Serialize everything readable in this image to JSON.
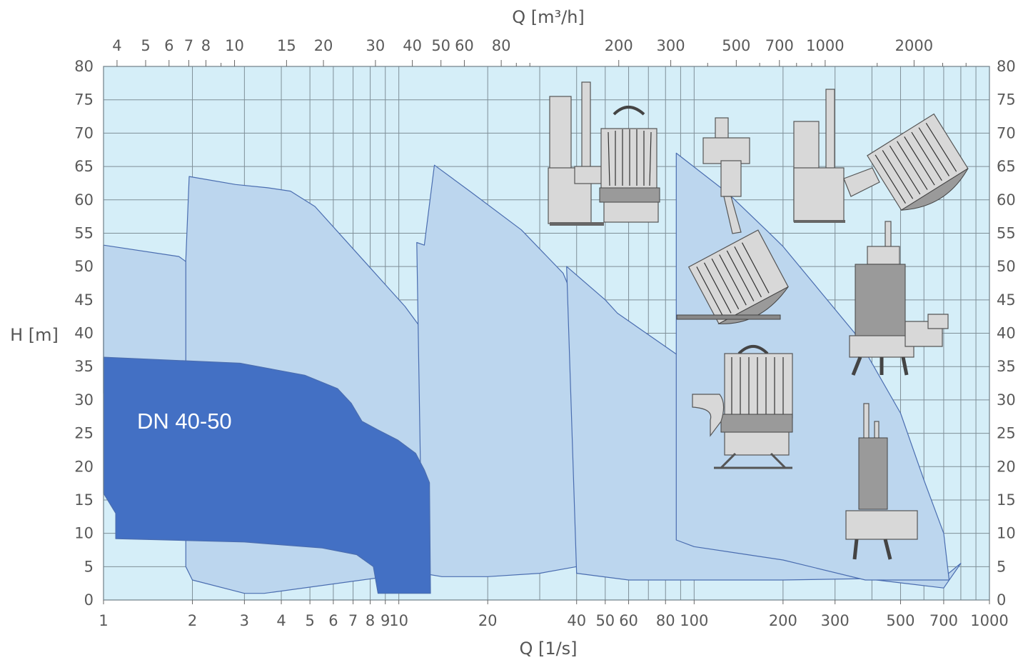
{
  "chart_data": {
    "type": "area",
    "title": "",
    "xlabel_bottom": "Q [1/s]",
    "xlabel_top": "Q [m³/h]",
    "ylabel": "H [m]",
    "xscale": "log",
    "xlim": [
      1,
      1000
    ],
    "ylim": [
      0,
      80
    ],
    "grid": true,
    "x_ticks_bottom": [
      {
        "v": 1,
        "label": "1"
      },
      {
        "v": 2,
        "label": "2"
      },
      {
        "v": 3,
        "label": "3"
      },
      {
        "v": 4,
        "label": "4"
      },
      {
        "v": 5,
        "label": "5"
      },
      {
        "v": 6,
        "label": "6"
      },
      {
        "v": 7,
        "label": "7"
      },
      {
        "v": 8,
        "label": "8"
      },
      {
        "v": 9,
        "label": "9"
      },
      {
        "v": 10,
        "label": "10"
      },
      {
        "v": 20,
        "label": "20"
      },
      {
        "v": 40,
        "label": "40"
      },
      {
        "v": 50,
        "label": "50"
      },
      {
        "v": 60,
        "label": "60"
      },
      {
        "v": 80,
        "label": "80"
      },
      {
        "v": 100,
        "label": "100"
      },
      {
        "v": 200,
        "label": "200"
      },
      {
        "v": 300,
        "label": "300"
      },
      {
        "v": 500,
        "label": "500"
      },
      {
        "v": 700,
        "label": "700"
      },
      {
        "v": 1000,
        "label": "1000"
      }
    ],
    "x_ticks_top": [
      {
        "v": 4,
        "label": "4"
      },
      {
        "v": 5,
        "label": "5"
      },
      {
        "v": 6,
        "label": "6"
      },
      {
        "v": 7,
        "label": "7"
      },
      {
        "v": 8,
        "label": "8"
      },
      {
        "v": 10,
        "label": "10"
      },
      {
        "v": 15,
        "label": "15"
      },
      {
        "v": 20,
        "label": "20"
      },
      {
        "v": 30,
        "label": "30"
      },
      {
        "v": 40,
        "label": "40"
      },
      {
        "v": 50,
        "label": "50"
      },
      {
        "v": 60,
        "label": "60"
      },
      {
        "v": 80,
        "label": "80"
      },
      {
        "v": 200,
        "label": "200"
      },
      {
        "v": 300,
        "label": "300"
      },
      {
        "v": 500,
        "label": "500"
      },
      {
        "v": 700,
        "label": "700"
      },
      {
        "v": 1000,
        "label": "1000"
      },
      {
        "v": 2000,
        "label": "2000"
      }
    ],
    "y_ticks": [
      0,
      5,
      10,
      15,
      20,
      25,
      30,
      35,
      40,
      45,
      50,
      55,
      60,
      65,
      70,
      75,
      80
    ],
    "colors": {
      "plot_background": "#d5eef8",
      "region_light": "#bcd6ee",
      "region_highlight": "#4370c4",
      "region_border": "#4a6db0",
      "grid": "#7f8f98"
    },
    "series": [
      {
        "fill": "region_light",
        "points": [
          [
            1,
            53.2
          ],
          [
            1.8,
            51.5
          ],
          [
            2.4,
            47.5
          ],
          [
            3.2,
            42
          ],
          [
            3.7,
            37.5
          ],
          [
            4.1,
            31
          ],
          [
            1,
            31
          ]
        ]
      },
      {
        "fill": "region_light",
        "points": [
          [
            1.9,
            51
          ],
          [
            1.95,
            63.5
          ],
          [
            2.8,
            62.3
          ],
          [
            3.6,
            61.8
          ],
          [
            4.3,
            61.3
          ],
          [
            5.2,
            59
          ],
          [
            10.5,
            44
          ],
          [
            16,
            33
          ],
          [
            22,
            25
          ],
          [
            26,
            18
          ],
          [
            20,
            10
          ],
          [
            18,
            6
          ],
          [
            11,
            4
          ],
          [
            3.5,
            1
          ],
          [
            3,
            1
          ],
          [
            2,
            3
          ],
          [
            1.9,
            5
          ]
        ]
      },
      {
        "fill": "region_light",
        "points": [
          [
            11.5,
            53.6
          ],
          [
            12.2,
            53.2
          ],
          [
            13.2,
            65.2
          ],
          [
            17.5,
            61.2
          ],
          [
            26,
            55.5
          ],
          [
            36,
            49
          ],
          [
            41,
            43
          ],
          [
            55,
            23
          ],
          [
            80,
            12
          ],
          [
            115,
            3.8
          ],
          [
            70,
            4
          ],
          [
            50,
            4.8
          ],
          [
            40,
            5
          ],
          [
            30,
            4
          ],
          [
            20,
            3.5
          ],
          [
            14,
            3.5
          ],
          [
            12,
            4
          ]
        ]
      },
      {
        "fill": "region_light",
        "points": [
          [
            37,
            50
          ],
          [
            50,
            45
          ],
          [
            55,
            43
          ],
          [
            80,
            38
          ],
          [
            100,
            35
          ],
          [
            170,
            26
          ],
          [
            230,
            20
          ],
          [
            310,
            14
          ],
          [
            480,
            8
          ],
          [
            700,
            3.4
          ],
          [
            800,
            5.5
          ],
          [
            700,
            1.8
          ],
          [
            380,
            3.2
          ],
          [
            200,
            3
          ],
          [
            60,
            3
          ],
          [
            40,
            4
          ]
        ]
      },
      {
        "fill": "region_light",
        "points": [
          [
            87,
            67
          ],
          [
            130,
            61
          ],
          [
            180,
            55
          ],
          [
            200,
            53
          ],
          [
            350,
            40
          ],
          [
            500,
            28
          ],
          [
            600,
            18
          ],
          [
            700,
            10
          ],
          [
            730,
            3
          ],
          [
            380,
            3
          ],
          [
            200,
            6
          ],
          [
            100,
            8
          ],
          [
            87,
            9
          ]
        ]
      },
      {
        "fill": "region_highlight",
        "label": "DN 40-50",
        "points": [
          [
            1,
            36.4
          ],
          [
            2.9,
            35.5
          ],
          [
            4.8,
            33.7
          ],
          [
            6.2,
            31.7
          ],
          [
            6.9,
            29.5
          ],
          [
            7.5,
            26.8
          ],
          [
            8.5,
            25.5
          ],
          [
            9.9,
            24
          ],
          [
            11.4,
            22
          ],
          [
            12.2,
            19.5
          ],
          [
            12.7,
            17.6
          ],
          [
            12.8,
            1
          ],
          [
            8.5,
            1
          ],
          [
            8.2,
            5
          ],
          [
            7.2,
            6.8
          ],
          [
            5.5,
            7.8
          ],
          [
            3,
            8.7
          ],
          [
            1.1,
            9.2
          ],
          [
            1.1,
            13
          ],
          [
            1,
            16
          ],
          [
            1,
            20
          ],
          [
            1,
            36.4
          ]
        ]
      }
    ],
    "annotations": [
      {
        "text": "DN 40-50",
        "x": 1.3,
        "y": 27
      }
    ],
    "icons": [
      "pump-rail-guided-icon",
      "pump-tilted-rail-icon",
      "pump-tilted-stand-icon",
      "pump-vertical-tall-icon",
      "pump-standing-outlet-icon",
      "pump-submersible-small-icon"
    ]
  }
}
